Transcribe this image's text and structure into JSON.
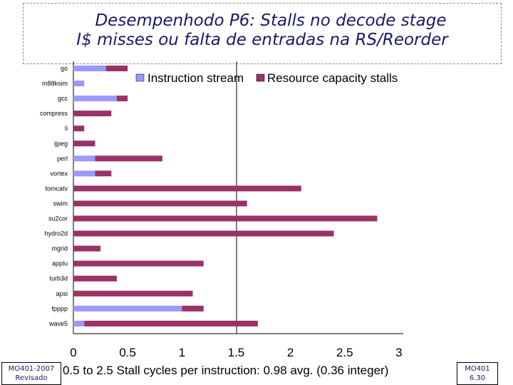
{
  "slide": {
    "title_line1": "Desempenhodo P6: Stalls no decode stage",
    "title_line2": "I$ misses ou falta de entradas na RS/Reorder",
    "footer_left_line1": "MO401-2007",
    "footer_left_line2": "Revisado",
    "footer_right_line1": "MO401",
    "footer_right_line2": "6.30",
    "caption": "0.5 to 2.5 Stall cycles per instruction: 0.98 avg. (0.36 integer)"
  },
  "colors": {
    "instruction_stream": "#9999ff",
    "resource_capacity": "#993366",
    "title": "#1a1a66"
  },
  "chart_data": {
    "type": "bar",
    "orientation": "horizontal",
    "stacked": true,
    "categories": [
      "go",
      "m88ksim",
      "gcc",
      "compress",
      "li",
      "ijpeg",
      "perl",
      "vortex",
      "tomcatv",
      "swim",
      "su2cor",
      "hydro2d",
      "mgrid",
      "applu",
      "turb3d",
      "apsi",
      "fpppp",
      "wave5"
    ],
    "series": [
      {
        "name": "Instruction stream",
        "values": [
          0.3,
          0.1,
          0.4,
          0.0,
          0.0,
          0.0,
          0.2,
          0.2,
          0.0,
          0.0,
          0.0,
          0.0,
          0.0,
          0.0,
          0.0,
          0.0,
          1.0,
          0.1
        ]
      },
      {
        "name": "Resource capacity stalls",
        "values": [
          0.2,
          0.0,
          0.1,
          0.35,
          0.1,
          0.2,
          0.62,
          0.15,
          2.1,
          1.6,
          2.8,
          2.4,
          0.25,
          1.2,
          0.4,
          1.1,
          0.2,
          1.6
        ]
      }
    ],
    "x_ticks": [
      "0",
      "0.5",
      "1",
      "1.5",
      "2",
      "2.5",
      "3"
    ],
    "xlim": [
      0,
      3
    ],
    "reference_line_x": 1.5,
    "legend_position": "top",
    "grid": false
  }
}
